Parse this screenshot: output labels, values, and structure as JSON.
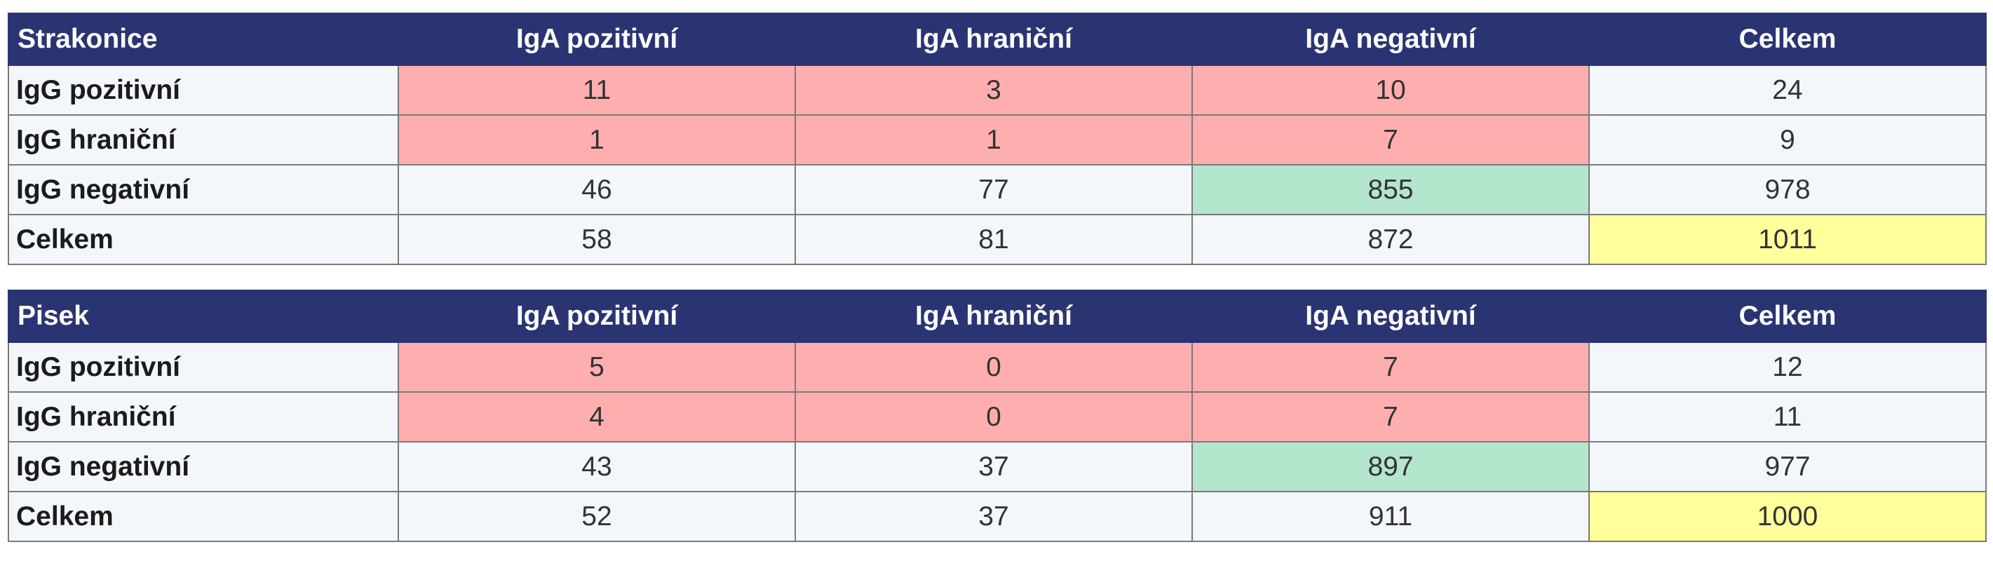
{
  "colors": {
    "header": "#2b3472",
    "positive_cells": "#ffaeb0",
    "negative_agreement": "#b3e6cc",
    "grand_total": "#ffff9c"
  },
  "column_headers": [
    "IgA pozitivní",
    "IgA hraniční",
    "IgA negativní",
    "Celkem"
  ],
  "tables": [
    {
      "title": "Strakonice",
      "rows": [
        {
          "label": "IgG pozitivní",
          "values": [
            "11",
            "3",
            "10",
            "24"
          ]
        },
        {
          "label": "IgG hraniční",
          "values": [
            "1",
            "1",
            "7",
            "9"
          ]
        },
        {
          "label": "IgG negativní",
          "values": [
            "46",
            "77",
            "855",
            "978"
          ]
        },
        {
          "label": "Celkem",
          "values": [
            "58",
            "81",
            "872",
            "1011"
          ]
        }
      ]
    },
    {
      "title": "Pisek",
      "rows": [
        {
          "label": "IgG pozitivní",
          "values": [
            "5",
            "0",
            "7",
            "12"
          ]
        },
        {
          "label": "IgG hraniční",
          "values": [
            "4",
            "0",
            "7",
            "11"
          ]
        },
        {
          "label": "IgG negativní",
          "values": [
            "43",
            "37",
            "897",
            "977"
          ]
        },
        {
          "label": "Celkem",
          "values": [
            "52",
            "37",
            "911",
            "1000"
          ]
        }
      ]
    }
  ]
}
